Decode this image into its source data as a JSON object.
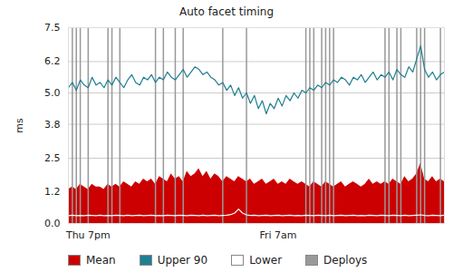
{
  "chart_data": {
    "type": "line",
    "title": "Auto facet timing",
    "y_label": "ms",
    "categories": [
      null,
      null,
      null,
      null,
      null,
      "Thu 7pm",
      null,
      null,
      null,
      null,
      null,
      null,
      null,
      null,
      null,
      null,
      null,
      null,
      null,
      null,
      null,
      null,
      null,
      null,
      null,
      null,
      null,
      null,
      null,
      null,
      null,
      null,
      null,
      null,
      null,
      null,
      null,
      null,
      null,
      null,
      null,
      null,
      null,
      null,
      null,
      null,
      null,
      null,
      null,
      null,
      null,
      null,
      null,
      "Fri 7am",
      null,
      null,
      null,
      null,
      null,
      null,
      null,
      null,
      null,
      null,
      null,
      null,
      null,
      null,
      null,
      null,
      null,
      null,
      null,
      null,
      null,
      null,
      null,
      null,
      null,
      null,
      null,
      null,
      null,
      null,
      null,
      null,
      null,
      null,
      null,
      null,
      null,
      null,
      null,
      null,
      null,
      null
    ],
    "series": [
      {
        "name": "Mean",
        "type": "area",
        "color": "#cc0000",
        "values": [
          1.3,
          1.4,
          1.3,
          1.5,
          1.4,
          1.3,
          1.5,
          1.4,
          1.4,
          1.3,
          1.5,
          1.4,
          1.5,
          1.4,
          1.6,
          1.5,
          1.4,
          1.6,
          1.5,
          1.7,
          1.6,
          1.7,
          1.5,
          1.8,
          1.7,
          1.6,
          1.9,
          1.7,
          1.8,
          1.6,
          2.0,
          1.8,
          1.9,
          2.1,
          1.8,
          2.0,
          1.7,
          1.9,
          1.8,
          1.6,
          1.8,
          1.7,
          1.6,
          1.8,
          1.7,
          1.6,
          1.7,
          1.5,
          1.6,
          1.7,
          1.5,
          1.6,
          1.7,
          1.5,
          1.6,
          1.5,
          1.7,
          1.6,
          1.5,
          1.6,
          1.5,
          1.4,
          1.6,
          1.5,
          1.4,
          1.6,
          1.5,
          1.4,
          1.5,
          1.6,
          1.4,
          1.5,
          1.6,
          1.5,
          1.4,
          1.5,
          1.7,
          1.5,
          1.6,
          1.5,
          1.6,
          1.5,
          1.7,
          1.6,
          1.5,
          1.8,
          1.6,
          1.7,
          1.9,
          2.3,
          1.7,
          1.6,
          1.8,
          1.6,
          1.7,
          1.6
        ]
      },
      {
        "name": "Upper 90",
        "type": "line",
        "color": "#1f7f91",
        "values": [
          5.2,
          5.4,
          5.1,
          5.5,
          5.3,
          5.2,
          5.6,
          5.3,
          5.4,
          5.2,
          5.5,
          5.3,
          5.6,
          5.4,
          5.2,
          5.5,
          5.7,
          5.4,
          5.3,
          5.6,
          5.5,
          5.7,
          5.4,
          5.6,
          5.5,
          5.8,
          5.6,
          5.5,
          5.7,
          5.9,
          5.6,
          5.8,
          6.0,
          5.9,
          5.7,
          5.8,
          5.6,
          5.5,
          5.3,
          5.4,
          5.1,
          5.3,
          4.9,
          5.2,
          4.8,
          5.0,
          4.6,
          4.9,
          4.4,
          4.7,
          4.2,
          4.6,
          4.4,
          4.8,
          4.5,
          4.9,
          4.7,
          5.0,
          4.8,
          5.1,
          5.0,
          5.2,
          5.1,
          5.3,
          5.2,
          5.4,
          5.3,
          5.5,
          5.4,
          5.6,
          5.5,
          5.3,
          5.6,
          5.5,
          5.7,
          5.4,
          5.6,
          5.8,
          5.5,
          5.7,
          5.6,
          5.8,
          5.5,
          5.9,
          5.7,
          5.6,
          6.0,
          5.8,
          6.3,
          6.8,
          5.9,
          5.6,
          5.8,
          5.5,
          5.7,
          5.8
        ]
      },
      {
        "name": "Lower",
        "type": "line",
        "color": "#ffffff",
        "values": [
          0.3,
          0.32,
          0.3,
          0.31,
          0.3,
          0.32,
          0.31,
          0.3,
          0.32,
          0.3,
          0.31,
          0.3,
          0.32,
          0.31,
          0.3,
          0.32,
          0.3,
          0.31,
          0.32,
          0.3,
          0.31,
          0.32,
          0.3,
          0.31,
          0.3,
          0.32,
          0.31,
          0.3,
          0.32,
          0.31,
          0.3,
          0.32,
          0.31,
          0.3,
          0.32,
          0.3,
          0.31,
          0.32,
          0.3,
          0.31,
          0.32,
          0.34,
          0.4,
          0.55,
          0.4,
          0.33,
          0.31,
          0.32,
          0.3,
          0.31,
          0.32,
          0.3,
          0.31,
          0.32,
          0.3,
          0.31,
          0.32,
          0.3,
          0.31,
          0.3,
          0.32,
          0.31,
          0.3,
          0.32,
          0.31,
          0.3,
          0.32,
          0.3,
          0.31,
          0.32,
          0.3,
          0.31,
          0.32,
          0.3,
          0.31,
          0.3,
          0.32,
          0.31,
          0.3,
          0.32,
          0.31,
          0.3,
          0.32,
          0.31,
          0.3,
          0.32,
          0.3,
          0.31,
          0.32,
          0.33,
          0.31,
          0.3,
          0.32,
          0.31,
          0.3,
          0.32
        ]
      }
    ],
    "deploys": {
      "name": "Deploys",
      "color": "#999999",
      "at": [
        1,
        2,
        3,
        5,
        10,
        11,
        13,
        22,
        24,
        27,
        29,
        39,
        45,
        60,
        61,
        62,
        64,
        65,
        66,
        67,
        80,
        81,
        83,
        84,
        88,
        89,
        90,
        94
      ]
    },
    "ylim": [
      0,
      7.5
    ],
    "yticks": [
      {
        "value": 0,
        "label": "0.0"
      },
      1.2,
      2.5,
      3.8,
      {
        "value": 5,
        "label": "5.0"
      },
      6.2,
      7.5
    ],
    "grid": true
  }
}
